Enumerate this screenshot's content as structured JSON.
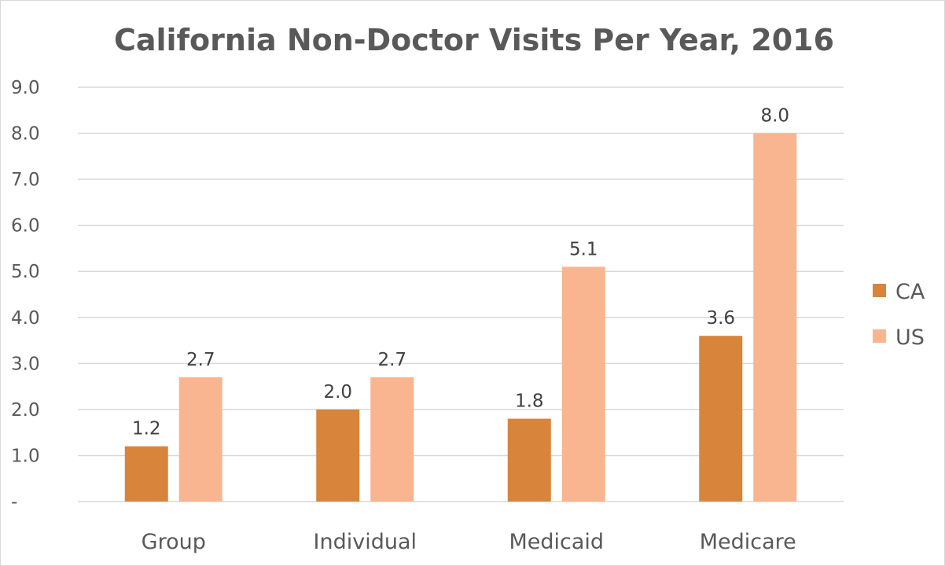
{
  "chart_data": {
    "type": "bar",
    "title": "California Non-Doctor Visits Per Year, 2016",
    "xlabel": "",
    "ylabel": "",
    "categories": [
      "Group",
      "Individual",
      "Medicaid",
      "Medicare"
    ],
    "series": [
      {
        "name": "CA",
        "values": [
          1.2,
          2.0,
          1.8,
          3.6
        ],
        "color": "#d9843b"
      },
      {
        "name": "US",
        "values": [
          2.7,
          2.7,
          5.1,
          8.0
        ],
        "color": "#f8b590"
      }
    ],
    "value_labels": [
      [
        "1.2",
        "2.0",
        "1.8",
        "3.6"
      ],
      [
        "2.7",
        "2.7",
        "5.1",
        "8.0"
      ]
    ],
    "ylim": [
      0,
      9
    ],
    "y_ticks": [
      0,
      1,
      2,
      3,
      4,
      5,
      6,
      7,
      8,
      9
    ],
    "y_tick_labels": [
      "-",
      "1.0",
      "2.0",
      "3.0",
      "4.0",
      "5.0",
      "6.0",
      "7.0",
      "8.0",
      "9.0"
    ],
    "grid": true,
    "legend_position": "right"
  }
}
